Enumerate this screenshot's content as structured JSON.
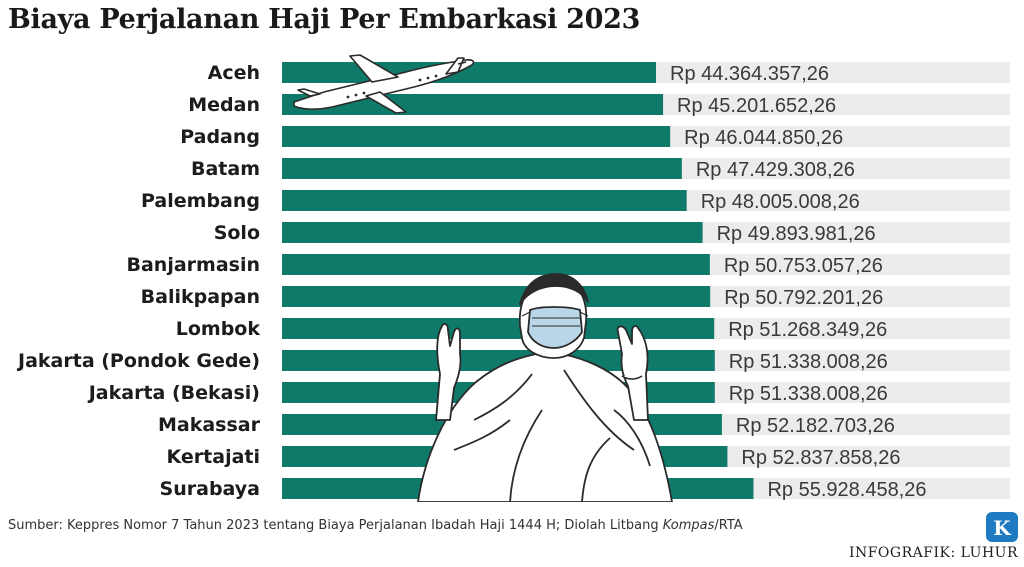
{
  "title": "Biaya Perjalanan Haji Per Embarkasi 2023",
  "source": {
    "prefix": "Sumber: Keppres Nomor 7 Tahun 2023 tentang Biaya Perjalanan Ibadah Haji 1444 H; Diolah Litbang ",
    "italic": "Kompas",
    "suffix": "/RTA"
  },
  "credit": "INFOGRAFIK: LUHUR",
  "logo_letter": "K",
  "colors": {
    "bar": "#0f7a69",
    "track": "#ececec",
    "logo": "#1f7bc1"
  },
  "chart_data": {
    "type": "bar",
    "orientation": "horizontal",
    "title": "Biaya Perjalanan Haji Per Embarkasi 2023",
    "categories": [
      "Aceh",
      "Medan",
      "Padang",
      "Batam",
      "Palembang",
      "Solo",
      "Banjarmasin",
      "Balikpapan",
      "Lombok",
      "Jakarta (Pondok Gede)",
      "Jakarta (Bekasi)",
      "Makassar",
      "Kertajati",
      "Surabaya"
    ],
    "values": [
      44364357.26,
      45201652.26,
      46044850.26,
      47429308.26,
      48005008.26,
      49893981.26,
      50753057.26,
      50792201.26,
      51268349.26,
      51338008.26,
      51338008.26,
      52182703.26,
      52837858.26,
      55928458.26
    ],
    "value_labels": [
      "Rp 44.364.357,26",
      "Rp 45.201.652,26",
      "Rp 46.044.850,26",
      "Rp 47.429.308,26",
      "Rp 48.005.008,26",
      "Rp 49.893.981,26",
      "Rp 50.753.057,26",
      "Rp 50.792.201,26",
      "Rp 51.268.349,26",
      "Rp 51.338.008,26",
      "Rp 51.338.008,26",
      "Rp 52.182.703,26",
      "Rp 52.837.858,26",
      "Rp 55.928.458,26"
    ],
    "xlim": [
      0,
      60000000
    ],
    "grid": false,
    "legend": "none"
  },
  "illustrations": {
    "plane": "airplane-icon",
    "person": "pilgrim-praying-illustration"
  }
}
